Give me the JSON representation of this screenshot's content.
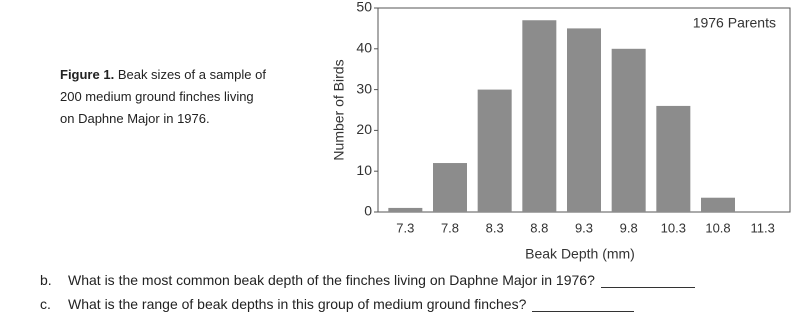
{
  "figure": {
    "label": "Figure 1.",
    "lines": [
      "Beak sizes of a sample of",
      "200 medium ground finches living",
      "on Daphne Major in 1976."
    ]
  },
  "chart_data": {
    "type": "bar",
    "annotation": "1976 Parents",
    "xlabel": "Beak Depth (mm)",
    "ylabel": "Number of Birds",
    "categories": [
      "7.3",
      "7.8",
      "8.3",
      "8.8",
      "9.3",
      "9.8",
      "10.3",
      "10.8",
      "11.3"
    ],
    "values": [
      1,
      12,
      30,
      47,
      45,
      40,
      26,
      3.5,
      0
    ],
    "color": "#8c8c8c",
    "ylim": [
      0,
      50
    ],
    "yticks": [
      0,
      10,
      20,
      30,
      40,
      50
    ]
  },
  "questions": [
    {
      "label": "b.",
      "text": "What is the most common beak depth of the finches living on Daphne Major in 1976?"
    },
    {
      "label": "c.",
      "text": "What is the range of beak depths in this group of medium ground finches?"
    }
  ]
}
